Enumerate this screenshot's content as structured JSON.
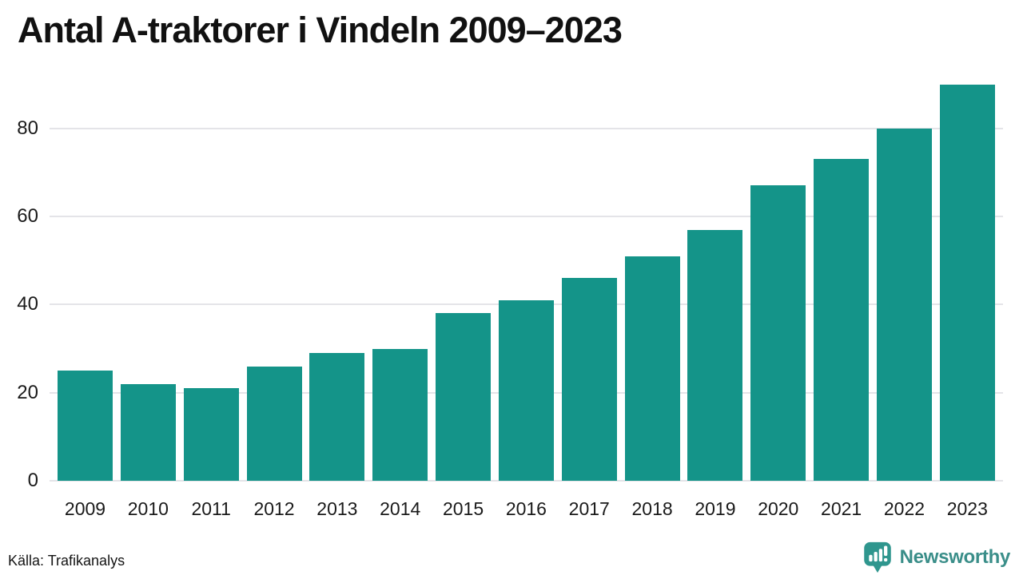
{
  "title": "Antal A-traktorer i Vindeln 2009–2023",
  "chart_data": {
    "type": "bar",
    "title": "Antal A-traktorer i Vindeln 2009–2023",
    "categories": [
      "2009",
      "2010",
      "2011",
      "2012",
      "2013",
      "2014",
      "2015",
      "2016",
      "2017",
      "2018",
      "2019",
      "2020",
      "2021",
      "2022",
      "2023"
    ],
    "values": [
      25,
      22,
      21,
      26,
      29,
      30,
      38,
      41,
      46,
      51,
      57,
      67,
      73,
      80,
      90
    ],
    "xlabel": "",
    "ylabel": "",
    "yticks": [
      0,
      20,
      40,
      60,
      80
    ],
    "ylim": [
      0,
      91
    ],
    "grid": "horizontal-only",
    "legend": "none"
  },
  "footer": {
    "source": "Källa: Trafikanalys",
    "brand": "Newsworthy"
  },
  "colors": {
    "bar": "#149489",
    "grid": "#e4e4e8",
    "title": "#111111",
    "tick_label": "#1a1a1a",
    "brand_teal": "#3a8e89",
    "logo_bubble": "#2f968e"
  },
  "icons": {
    "logo": "newsworthy-speech-bubble-bar-chart-icon"
  }
}
